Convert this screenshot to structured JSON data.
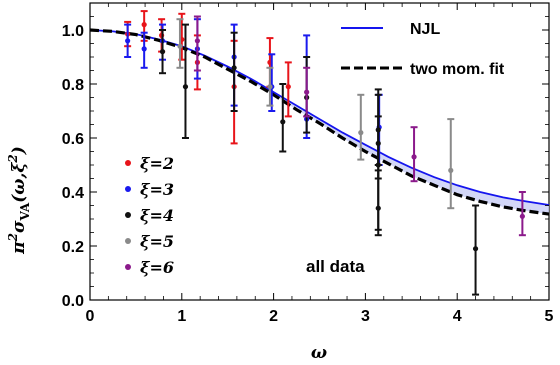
{
  "chart_data": {
    "type": "scatter",
    "title": "",
    "xlabel": "ω",
    "ylabel_parts": {
      "pi": "π",
      "sup2": "2",
      "sigma": "σ",
      "sub": "VA",
      "args": "(ω,ξ",
      "sup2b": "2",
      "close": ")"
    },
    "xlim": [
      0,
      5
    ],
    "ylim": [
      0,
      1.1
    ],
    "x_ticks": [
      "0",
      "1",
      "2",
      "3",
      "4",
      "5"
    ],
    "y_ticks": [
      "0.0",
      "0.2",
      "0.4",
      "0.6",
      "0.8",
      "1.0"
    ],
    "annotation": "all data",
    "curves": [
      {
        "name": "NJL",
        "color": "#1515ee",
        "style": "solid",
        "x": [
          0,
          0.25,
          0.5,
          0.75,
          1,
          1.25,
          1.5,
          1.75,
          2,
          2.25,
          2.5,
          2.75,
          3,
          3.25,
          3.5,
          3.75,
          4,
          4.25,
          4.5,
          4.75,
          5
        ],
        "y": [
          1.0,
          0.995,
          0.985,
          0.965,
          0.94,
          0.905,
          0.865,
          0.82,
          0.77,
          0.72,
          0.67,
          0.62,
          0.575,
          0.53,
          0.49,
          0.455,
          0.425,
          0.4,
          0.38,
          0.365,
          0.352
        ]
      },
      {
        "name": "two mom. fit",
        "color": "#000000",
        "style": "dashed",
        "x": [
          0,
          0.25,
          0.5,
          0.75,
          1,
          1.25,
          1.5,
          1.75,
          2,
          2.25,
          2.5,
          2.75,
          3,
          3.25,
          3.5,
          3.75,
          4,
          4.25,
          4.5,
          4.75,
          5
        ],
        "y": [
          1.0,
          0.995,
          0.983,
          0.962,
          0.935,
          0.9,
          0.855,
          0.81,
          0.76,
          0.705,
          0.655,
          0.6,
          0.55,
          0.505,
          0.46,
          0.425,
          0.39,
          0.365,
          0.345,
          0.33,
          0.318
        ]
      }
    ],
    "series": [
      {
        "name": "ξ=2",
        "color": "#e8141a",
        "points": [
          {
            "x": 0.41,
            "y": 0.985,
            "lo": 0.94,
            "hi": 1.03
          },
          {
            "x": 0.59,
            "y": 1.02,
            "lo": 0.96,
            "hi": 1.07
          },
          {
            "x": 0.78,
            "y": 0.98,
            "lo": 0.92,
            "hi": 1.04
          },
          {
            "x": 1.0,
            "y": 0.965,
            "lo": 0.89,
            "hi": 1.06
          },
          {
            "x": 1.17,
            "y": 0.88,
            "lo": 0.78,
            "hi": 0.98
          },
          {
            "x": 1.57,
            "y": 0.79,
            "lo": 0.58,
            "hi": 0.96
          },
          {
            "x": 1.96,
            "y": 0.88,
            "lo": 0.79,
            "hi": 0.97
          },
          {
            "x": 2.16,
            "y": 0.79,
            "lo": 0.68,
            "hi": 0.88
          }
        ]
      },
      {
        "name": "ξ=3",
        "color": "#1a1aee",
        "points": [
          {
            "x": 0.41,
            "y": 0.96,
            "lo": 0.9,
            "hi": 1.02
          },
          {
            "x": 0.59,
            "y": 0.93,
            "lo": 0.86,
            "hi": 0.99
          },
          {
            "x": 0.79,
            "y": 0.96,
            "lo": 0.89,
            "hi": 1.02
          },
          {
            "x": 1.17,
            "y": 0.93,
            "lo": 0.82,
            "hi": 1.04
          },
          {
            "x": 1.57,
            "y": 0.9,
            "lo": 0.72,
            "hi": 1.02
          },
          {
            "x": 1.98,
            "y": 0.79,
            "lo": 0.7,
            "hi": 0.91
          },
          {
            "x": 2.36,
            "y": 0.67,
            "lo": 0.6,
            "hi": 0.98
          },
          {
            "x": 3.15,
            "y": 0.64,
            "lo": 0.5,
            "hi": 0.76
          }
        ]
      },
      {
        "name": "ξ=4",
        "color": "#111111",
        "points": [
          {
            "x": 0.79,
            "y": 0.92,
            "lo": 0.84,
            "hi": 1.0
          },
          {
            "x": 1.04,
            "y": 0.79,
            "lo": 0.6,
            "hi": 1.02
          },
          {
            "x": 1.57,
            "y": 0.86,
            "lo": 0.7,
            "hi": 0.99
          },
          {
            "x": 2.1,
            "y": 0.66,
            "lo": 0.55,
            "hi": 0.8
          },
          {
            "x": 2.36,
            "y": 0.75,
            "lo": 0.62,
            "hi": 0.9
          },
          {
            "x": 3.14,
            "y": 0.5,
            "lo": 0.26,
            "hi": 0.68
          },
          {
            "x": 3.14,
            "y": 0.58,
            "lo": 0.45,
            "hi": 0.78
          },
          {
            "x": 3.14,
            "y": 0.63,
            "lo": 0.5,
            "hi": 0.76
          },
          {
            "x": 3.14,
            "y": 0.34,
            "lo": 0.24,
            "hi": 0.48
          },
          {
            "x": 4.2,
            "y": 0.19,
            "lo": 0.02,
            "hi": 0.35
          }
        ]
      },
      {
        "name": "ξ=5",
        "color": "#8a8a8a",
        "points": [
          {
            "x": 0.98,
            "y": 0.94,
            "lo": 0.86,
            "hi": 1.04
          },
          {
            "x": 1.96,
            "y": 0.79,
            "lo": 0.72,
            "hi": 0.86
          },
          {
            "x": 2.95,
            "y": 0.62,
            "lo": 0.52,
            "hi": 0.76
          },
          {
            "x": 3.93,
            "y": 0.48,
            "lo": 0.34,
            "hi": 0.67
          }
        ]
      },
      {
        "name": "ξ=6",
        "color": "#8b1a8b",
        "points": [
          {
            "x": 1.17,
            "y": 0.96,
            "lo": 0.85,
            "hi": 1.05
          },
          {
            "x": 2.36,
            "y": 0.77,
            "lo": 0.68,
            "hi": 0.86
          },
          {
            "x": 3.53,
            "y": 0.53,
            "lo": 0.44,
            "hi": 0.64
          },
          {
            "x": 4.71,
            "y": 0.31,
            "lo": 0.24,
            "hi": 0.4
          }
        ]
      }
    ]
  }
}
